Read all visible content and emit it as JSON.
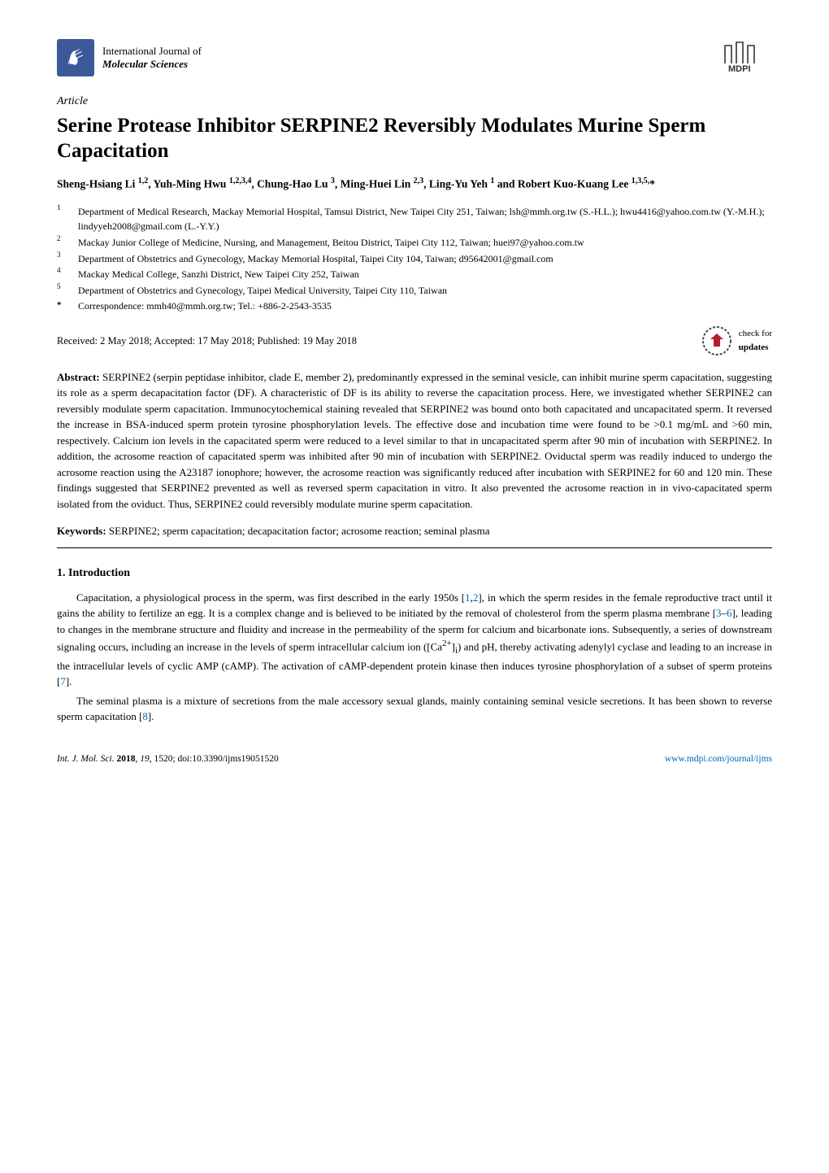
{
  "journal": {
    "line1": "International Journal of",
    "line2": "Molecular Sciences"
  },
  "publisher": "MDPI",
  "article_type": "Article",
  "title": "Serine Protease Inhibitor SERPINE2 Reversibly Modulates Murine Sperm Capacitation",
  "authors_html": "Sheng-Hsiang Li <sup>1,2</sup>, Yuh-Ming Hwu <sup>1,2,3,4</sup>, Chung-Hao Lu <sup>3</sup>, Ming-Huei Lin <sup>2,3</sup>, Ling-Yu Yeh <sup>1</sup> and Robert Kuo-Kuang Lee <sup>1,3,5,</sup>*",
  "affiliations": [
    {
      "num": "1",
      "text": "Department of Medical Research, Mackay Memorial Hospital, Tamsui District, New Taipei City 251, Taiwan; lsh@mmh.org.tw (S.-H.L.); hwu4416@yahoo.com.tw (Y.-M.H.); lindyyeh2008@gmail.com (L.-Y.Y.)"
    },
    {
      "num": "2",
      "text": "Mackay Junior College of Medicine, Nursing, and Management, Beitou District, Taipei City 112, Taiwan; huei97@yahoo.com.tw"
    },
    {
      "num": "3",
      "text": "Department of Obstetrics and Gynecology, Mackay Memorial Hospital, Taipei City 104, Taiwan; d95642001@gmail.com"
    },
    {
      "num": "4",
      "text": "Mackay Medical College, Sanzhi District, New Taipei City 252, Taiwan"
    },
    {
      "num": "5",
      "text": "Department of Obstetrics and Gynecology, Taipei Medical University, Taipei City 110, Taiwan"
    },
    {
      "num": "*",
      "text": "Correspondence: mmh40@mmh.org.tw; Tel.: +886-2-2543-3535"
    }
  ],
  "dates": "Received: 2 May 2018; Accepted: 17 May 2018; Published: 19 May 2018",
  "updates_badge": {
    "line1": "check for",
    "line2": "updates"
  },
  "abstract_label": "Abstract:",
  "abstract_text": " SERPINE2 (serpin peptidase inhibitor, clade E, member 2), predominantly expressed in the seminal vesicle, can inhibit murine sperm capacitation, suggesting its role as a sperm decapacitation factor (DF). A characteristic of DF is its ability to reverse the capacitation process. Here, we investigated whether SERPINE2 can reversibly modulate sperm capacitation. Immunocytochemical staining revealed that SERPINE2 was bound onto both capacitated and uncapacitated sperm. It reversed the increase in BSA-induced sperm protein tyrosine phosphorylation levels. The effective dose and incubation time were found to be >0.1 mg/mL and >60 min, respectively. Calcium ion levels in the capacitated sperm were reduced to a level similar to that in uncapacitated sperm after 90 min of incubation with SERPINE2. In addition, the acrosome reaction of capacitated sperm was inhibited after 90 min of incubation with SERPINE2. Oviductal sperm was readily induced to undergo the acrosome reaction using the A23187 ionophore; however, the acrosome reaction was significantly reduced after incubation with SERPINE2 for 60 and 120 min. These findings suggested that SERPINE2 prevented as well as reversed sperm capacitation in vitro. It also prevented the acrosome reaction in in vivo-capacitated sperm isolated from the oviduct. Thus, SERPINE2 could reversibly modulate murine sperm capacitation.",
  "keywords_label": "Keywords:",
  "keywords_text": " SERPINE2; sperm capacitation; decapacitation factor; acrosome reaction; seminal plasma",
  "section1_heading": "1. Introduction",
  "para1_html": "Capacitation, a physiological process in the sperm, was first described in the early 1950s [<span class=\"ref-link\">1</span>,<span class=\"ref-link\">2</span>], in which the sperm resides in the female reproductive tract until it gains the ability to fertilize an egg. It is a complex change and is believed to be initiated by the removal of cholesterol from the sperm plasma membrane [<span class=\"ref-link\">3</span>–<span class=\"ref-link\">6</span>], leading to changes in the membrane structure and fluidity and increase in the permeability of the sperm for calcium and bicarbonate ions. Subsequently, a series of downstream signaling occurs, including an increase in the levels of sperm intracellular calcium ion ([Ca<sup>2+</sup>]<sub>i</sub>) and pH, thereby activating adenylyl cyclase and leading to an increase in the intracellular levels of cyclic AMP (cAMP). The activation of cAMP-dependent protein kinase then induces tyrosine phosphorylation of a subset of sperm proteins [<span class=\"ref-link\">7</span>].",
  "para2_html": "The seminal plasma is a mixture of secretions from the male accessory sexual glands, mainly containing seminal vesicle secretions.  It has been shown to reverse sperm capacitation [<span class=\"ref-link\">8</span>].",
  "footer": {
    "left_html": "<i>Int. J. Mol. Sci.</i> <b>2018</b>, <i>19</i>, 1520; doi:10.3390/ijms19051520",
    "right_text": "www.mdpi.com/journal/ijms",
    "right_href": "#"
  },
  "colors": {
    "logo_bg": "#3b5998",
    "ref_link": "#0068b4",
    "text": "#000000",
    "updates_arrow": "#b11f2a",
    "updates_ring": "#4a4a4a"
  }
}
